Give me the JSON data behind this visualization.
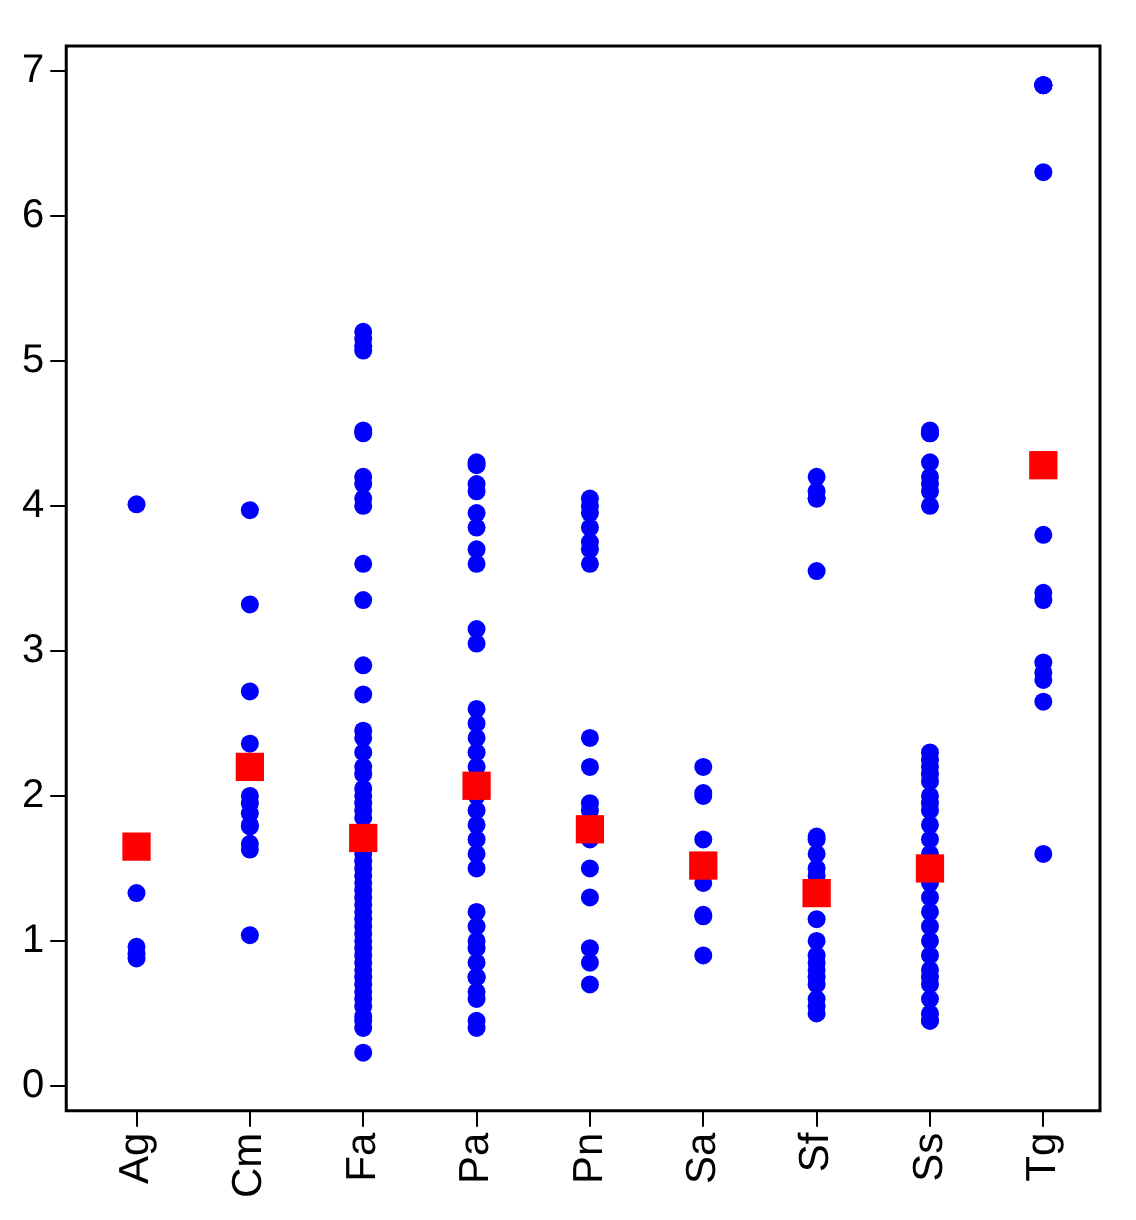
{
  "chart_data": {
    "type": "scatter",
    "categories": [
      "Ag",
      "Cm",
      "Fa",
      "Pa",
      "Pn",
      "Sa",
      "Sf",
      "Ss",
      "Tg"
    ],
    "ylim": [
      -0.17,
      7.17
    ],
    "yticks": [
      0,
      1,
      2,
      3,
      4,
      5,
      6,
      7
    ],
    "grid": false,
    "legend": false,
    "series": [
      {
        "color": "#0000ff",
        "marker": "circle",
        "x": [
          "Ag",
          "Ag",
          "Ag",
          "Ag",
          "Ag",
          "Cm",
          "Cm",
          "Cm",
          "Cm",
          "Cm",
          "Cm",
          "Cm",
          "Cm",
          "Cm",
          "Cm",
          "Cm",
          "Cm",
          "Fa",
          "Fa",
          "Fa",
          "Fa",
          "Fa",
          "Fa",
          "Fa",
          "Fa",
          "Fa",
          "Fa",
          "Fa",
          "Fa",
          "Fa",
          "Fa",
          "Fa",
          "Fa",
          "Fa",
          "Fa",
          "Fa",
          "Fa",
          "Fa",
          "Fa",
          "Fa",
          "Fa",
          "Fa",
          "Fa",
          "Fa",
          "Fa",
          "Fa",
          "Fa",
          "Fa",
          "Fa",
          "Fa",
          "Fa",
          "Fa",
          "Fa",
          "Fa",
          "Fa",
          "Fa",
          "Fa",
          "Fa",
          "Fa",
          "Fa",
          "Fa",
          "Fa",
          "Fa",
          "Fa",
          "Fa",
          "Fa",
          "Fa",
          "Pa",
          "Pa",
          "Pa",
          "Pa",
          "Pa",
          "Pa",
          "Pa",
          "Pa",
          "Pa",
          "Pa",
          "Pa",
          "Pa",
          "Pa",
          "Pa",
          "Pa",
          "Pa",
          "Pa",
          "Pa",
          "Pa",
          "Pa",
          "Pa",
          "Pa",
          "Pa",
          "Pa",
          "Pa",
          "Pa",
          "Pa",
          "Pa",
          "Pa",
          "Pa",
          "Pa",
          "Pa",
          "Pn",
          "Pn",
          "Pn",
          "Pn",
          "Pn",
          "Pn",
          "Pn",
          "Pn",
          "Pn",
          "Pn",
          "Pn",
          "Pn",
          "Pn",
          "Pn",
          "Pn",
          "Pn",
          "Pn",
          "Sa",
          "Sa",
          "Sa",
          "Sa",
          "Sa",
          "Sa",
          "Sa",
          "Sa",
          "Sf",
          "Sf",
          "Sf",
          "Sf",
          "Sf",
          "Sf",
          "Sf",
          "Sf",
          "Sf",
          "Sf",
          "Sf",
          "Sf",
          "Sf",
          "Sf",
          "Sf",
          "Sf",
          "Sf",
          "Sf",
          "Sf",
          "Sf",
          "Ss",
          "Ss",
          "Ss",
          "Ss",
          "Ss",
          "Ss",
          "Ss",
          "Ss",
          "Ss",
          "Ss",
          "Ss",
          "Ss",
          "Ss",
          "Ss",
          "Ss",
          "Ss",
          "Ss",
          "Ss",
          "Ss",
          "Ss",
          "Ss",
          "Ss",
          "Ss",
          "Ss",
          "Ss",
          "Ss",
          "Ss",
          "Ss",
          "Ss",
          "Ss",
          "Ss",
          "Ss",
          "Tg",
          "Tg",
          "Tg",
          "Tg",
          "Tg",
          "Tg",
          "Tg",
          "Tg",
          "Tg",
          "Tg",
          "Tg",
          "Tg",
          "Tg"
        ],
        "values": [
          4.01,
          1.33,
          0.91,
          0.96,
          0.88,
          3.97,
          3.32,
          2.72,
          2.36,
          2.0,
          1.88,
          1.95,
          1.8,
          1.67,
          1.79,
          1.63,
          1.04,
          5.2,
          5.15,
          5.1,
          5.07,
          4.5,
          4.52,
          4.2,
          4.15,
          4.05,
          4.0,
          3.6,
          3.35,
          2.9,
          2.7,
          2.45,
          2.4,
          2.3,
          2.2,
          2.15,
          2.05,
          2.0,
          1.95,
          1.9,
          1.85,
          1.6,
          1.55,
          1.5,
          1.45,
          1.4,
          1.35,
          1.3,
          1.25,
          1.2,
          1.15,
          1.1,
          1.05,
          1.0,
          0.95,
          0.9,
          0.85,
          0.8,
          0.75,
          0.7,
          0.65,
          0.6,
          0.55,
          0.45,
          0.48,
          0.4,
          0.23,
          4.3,
          4.28,
          4.15,
          4.1,
          3.95,
          3.85,
          3.7,
          3.6,
          3.15,
          3.05,
          2.6,
          2.5,
          2.4,
          2.3,
          2.2,
          2.0,
          1.9,
          1.8,
          1.7,
          1.6,
          1.5,
          1.2,
          1.1,
          1.0,
          0.95,
          0.85,
          0.75,
          0.75,
          0.65,
          0.6,
          0.45,
          0.4,
          4.05,
          4.0,
          3.95,
          3.85,
          3.75,
          3.7,
          3.6,
          2.4,
          2.2,
          1.95,
          1.9,
          1.7,
          1.5,
          1.3,
          0.95,
          0.85,
          0.7,
          2.2,
          2.02,
          2.0,
          1.7,
          1.4,
          1.18,
          1.17,
          0.9,
          4.2,
          4.1,
          4.05,
          4.05,
          3.55,
          1.72,
          1.7,
          1.6,
          1.5,
          1.45,
          1.15,
          1.0,
          0.9,
          0.85,
          0.8,
          0.75,
          0.7,
          0.6,
          0.55,
          0.5,
          4.52,
          4.5,
          4.5,
          4.3,
          4.2,
          4.15,
          4.1,
          4.0,
          2.3,
          2.25,
          2.2,
          2.15,
          2.1,
          2.0,
          1.95,
          1.9,
          1.8,
          1.7,
          1.6,
          1.4,
          1.3,
          1.2,
          1.1,
          1.0,
          0.9,
          0.8,
          0.75,
          0.7,
          0.6,
          0.5,
          0.45,
          0.45,
          6.9,
          6.9,
          6.9,
          6.9,
          6.3,
          3.8,
          3.4,
          3.35,
          2.92,
          2.85,
          2.8,
          2.65,
          1.6
        ]
      },
      {
        "color": "#ff0000",
        "marker": "square",
        "x": [
          "Ag",
          "Cm",
          "Fa",
          "Pa",
          "Pn",
          "Sa",
          "Sf",
          "Ss",
          "Tg"
        ],
        "values": [
          1.65,
          2.2,
          1.71,
          2.07,
          1.77,
          1.52,
          1.33,
          1.5,
          4.28
        ]
      }
    ]
  }
}
